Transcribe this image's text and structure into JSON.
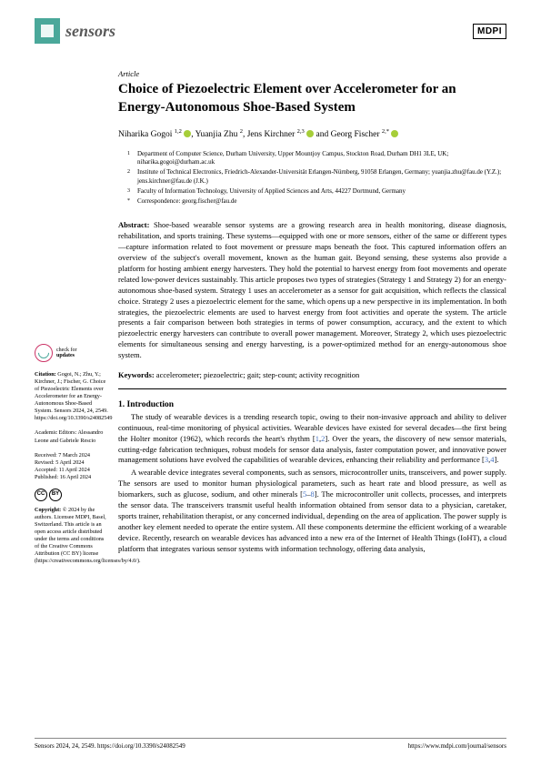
{
  "header": {
    "journal_name": "sensors",
    "publisher": "MDPI"
  },
  "article": {
    "type": "Article",
    "title": "Choice of Piezoelectric Element over Accelerometer for an Energy-Autonomous Shoe-Based System",
    "authors_html": "Niharika Gogoi 1,2 ●, Yuanjia Zhu 2, Jens Kirchner 2,3 ● and Georg Fischer 2,* ●",
    "authors": [
      {
        "name": "Niharika Gogoi",
        "sup": "1,2",
        "orcid": true
      },
      {
        "name": "Yuanjia Zhu",
        "sup": "2",
        "orcid": false
      },
      {
        "name": "Jens Kirchner",
        "sup": "2,3",
        "orcid": true
      },
      {
        "name": "Georg Fischer",
        "sup": "2,*",
        "orcid": true
      }
    ],
    "affiliations": [
      {
        "num": "1",
        "text": "Department of Computer Science, Durham University, Upper Mountjoy Campus, Stockton Road, Durham DH1 3LE, UK; niharika.gogoi@durham.ac.uk"
      },
      {
        "num": "2",
        "text": "Institute of Technical Electronics, Friedrich-Alexander-Universität Erlangen-Nürnberg, 91058 Erlangen, Germany; yuanjia.zhu@fau.de (Y.Z.); jens.kirchner@fau.de (J.K.)"
      },
      {
        "num": "3",
        "text": "Faculty of Information Technology, University of Applied Sciences and Arts, 44227 Dortmund, Germany"
      },
      {
        "num": "*",
        "text": "Correspondence: georg.fischer@fau.de"
      }
    ],
    "abstract_label": "Abstract:",
    "abstract": "Shoe-based wearable sensor systems are a growing research area in health monitoring, disease diagnosis, rehabilitation, and sports training. These systems—equipped with one or more sensors, either of the same or different types—capture information related to foot movement or pressure maps beneath the foot. This captured information offers an overview of the subject's overall movement, known as the human gait. Beyond sensing, these systems also provide a platform for hosting ambient energy harvesters. They hold the potential to harvest energy from foot movements and operate related low-power devices sustainably. This article proposes two types of strategies (Strategy 1 and Strategy 2) for an energy-autonomous shoe-based system. Strategy 1 uses an accelerometer as a sensor for gait acquisition, which reflects the classical choice. Strategy 2 uses a piezoelectric element for the same, which opens up a new perspective in its implementation. In both strategies, the piezoelectric elements are used to harvest energy from foot activities and operate the system. The article presents a fair comparison between both strategies in terms of power consumption, accuracy, and the extent to which piezoelectric energy harvesters can contribute to overall power management. Moreover, Strategy 2, which uses piezoelectric elements for simultaneous sensing and energy harvesting, is a power-optimized method for an energy-autonomous shoe system.",
    "keywords_label": "Keywords:",
    "keywords": "accelerometer; piezoelectric; gait; step-count; activity recognition"
  },
  "section1": {
    "heading": "1. Introduction",
    "para1": "The study of wearable devices is a trending research topic, owing to their non-invasive approach and ability to deliver continuous, real-time monitoring of physical activities. Wearable devices have existed for several decades—the first being the Holter monitor (1962), which records the heart's rhythm [1,2]. Over the years, the discovery of new sensor materials, cutting-edge fabrication techniques, robust models for sensor data analysis, faster computation power, and innovative power management solutions have evolved the capabilities of wearable devices, enhancing their reliability and performance [3,4].",
    "para2": "A wearable device integrates several components, such as sensors, microcontroller units, transceivers, and power supply. The sensors are used to monitor human physiological parameters, such as heart rate and blood pressure, as well as biomarkers, such as glucose, sodium, and other minerals [5–8]. The microcontroller unit collects, processes, and interprets the sensor data. The transceivers transmit useful health information obtained from sensor data to a physician, caretaker, sports trainer, rehabilitation therapist, or any concerned individual, depending on the area of application. The power supply is another key element needed to operate the entire system. All these components determine the efficient working of a wearable device. Recently, research on wearable devices has advanced into a new era of the Internet of Health Things (IoHT), a cloud platform that integrates various sensor systems with information technology, offering data analysis,"
  },
  "sidebar": {
    "check_updates": "check for updates",
    "citation_label": "Citation:",
    "citation": "Gogoi, N.; Zhu, Y.; Kirchner, J.; Fischer, G. Choice of Piezoelectric Elements over Accelerometer for an Energy-Autonomous Shoe-Based System. Sensors 2024, 24, 2549. https://doi.org/10.3390/s24082549",
    "editors_label": "Academic Editors:",
    "editors": "Alessandro Leone and Gabriele Rescio",
    "received_label": "Received:",
    "received": "7 March 2024",
    "revised_label": "Revised:",
    "revised": "5 April 2024",
    "accepted_label": "Accepted:",
    "accepted": "11 April 2024",
    "published_label": "Published:",
    "published": "16 April 2024",
    "copyright_label": "Copyright:",
    "copyright": "© 2024 by the authors. Licensee MDPI, Basel, Switzerland. This article is an open access article distributed under the terms and conditions of the Creative Commons Attribution (CC BY) license (https://creativecommons.org/licenses/by/4.0/)."
  },
  "footer": {
    "left": "Sensors 2024, 24, 2549. https://doi.org/10.3390/s24082549",
    "right": "https://www.mdpi.com/journal/sensors"
  },
  "colors": {
    "brand_teal": "#4aa89a",
    "link_blue": "#4472c4",
    "orcid_green": "#a6ce39",
    "crossmark_pink": "#cc3366"
  },
  "typography": {
    "title_fontsize": 15,
    "body_fontsize": 8.5,
    "sidebar_fontsize": 6.2,
    "footer_fontsize": 7
  }
}
